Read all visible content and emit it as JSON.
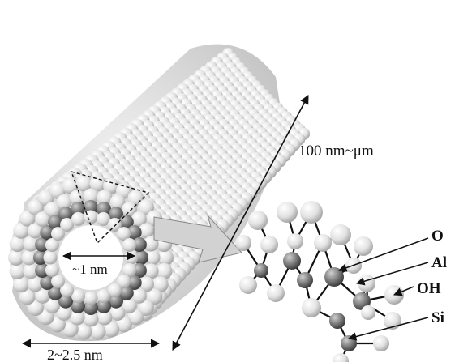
{
  "labels": {
    "length": "100 nm~μm",
    "inner_diameter": "~1 nm",
    "outer_diameter": "2~2.5 nm"
  },
  "atoms": [
    {
      "label": "O",
      "shade": "light"
    },
    {
      "label": "Al",
      "shade": "dark"
    },
    {
      "label": "OH",
      "shade": "light"
    },
    {
      "label": "Si",
      "shade": "dark"
    }
  ],
  "colors": {
    "sphere_light": "#e6e6e6",
    "sphere_dark": "#7a7a7a",
    "arrow_fill": "#d0d0d0",
    "line": "#111111"
  }
}
